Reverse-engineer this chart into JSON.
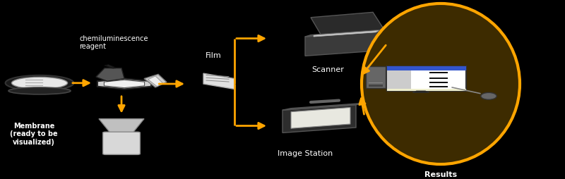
{
  "bg_color": "#000000",
  "arrow_color": "#FFA500",
  "text_color": "#FFFFFF",
  "label_fontsize": 8,
  "labels": {
    "membrane": "Membrane\n(ready to be\nvisualized)",
    "chemilum": "chemiluminescence\nreagent",
    "film": "Film",
    "scanner": "Scanner",
    "image_station": "Image Station",
    "results": "Results"
  }
}
